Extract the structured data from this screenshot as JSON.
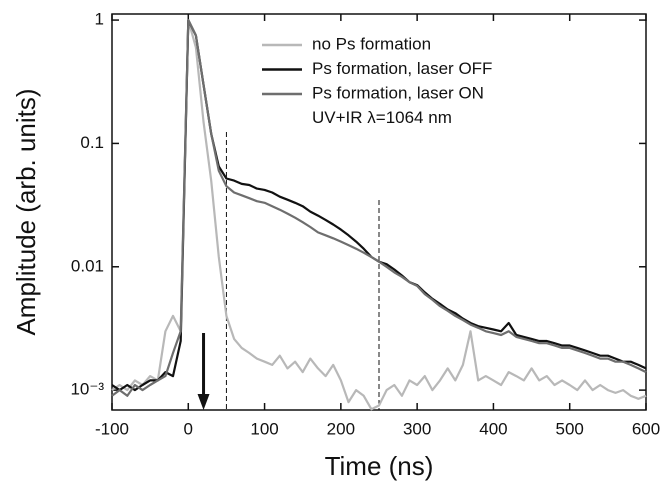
{
  "chart_data": {
    "type": "line",
    "x_label": "Time (ns)",
    "y_label": "Amplitude (arb. units)",
    "log_y": true,
    "xlim": [
      -100,
      600
    ],
    "ylim": [
      0.00069,
      1.12
    ],
    "xticks": [
      -100,
      0,
      100,
      200,
      300,
      400,
      500,
      600
    ],
    "yticks": [
      {
        "value": 0.001,
        "label": "10⁻³"
      },
      0.01,
      0.1,
      1
    ],
    "annotation": "UV+IR λ=1064 nm",
    "vlines": [
      50,
      250
    ],
    "arrow_x": 20,
    "x": [
      -100,
      -90,
      -80,
      -70,
      -60,
      -50,
      -40,
      -30,
      -20,
      -10,
      0,
      10,
      20,
      30,
      40,
      50,
      60,
      70,
      80,
      90,
      100,
      110,
      120,
      130,
      140,
      150,
      160,
      170,
      180,
      190,
      200,
      210,
      220,
      230,
      240,
      250,
      260,
      270,
      280,
      290,
      300,
      310,
      320,
      330,
      340,
      350,
      360,
      370,
      380,
      390,
      400,
      410,
      420,
      430,
      440,
      450,
      460,
      470,
      480,
      490,
      500,
      510,
      520,
      530,
      540,
      550,
      560,
      570,
      580,
      590,
      600
    ],
    "series": [
      {
        "name": "no Ps formation",
        "color": "#b8b8b8",
        "values": [
          0.001,
          0.0011,
          0.001,
          0.0012,
          0.0011,
          0.0013,
          0.0012,
          0.003,
          0.004,
          0.003,
          1,
          0.6,
          0.15,
          0.05,
          0.012,
          0.004,
          0.0026,
          0.0022,
          0.002,
          0.0018,
          0.0017,
          0.0016,
          0.0019,
          0.0015,
          0.0017,
          0.0014,
          0.0018,
          0.0015,
          0.0013,
          0.0016,
          0.0012,
          0.0008,
          0.001,
          0.0009,
          0.0007,
          0.00075,
          0.001,
          0.0011,
          0.0009,
          0.0012,
          0.0011,
          0.0013,
          0.001,
          0.0012,
          0.0015,
          0.0012,
          0.0016,
          0.003,
          0.0012,
          0.0013,
          0.0012,
          0.0011,
          0.0014,
          0.0013,
          0.0012,
          0.0015,
          0.0012,
          0.0013,
          0.0011,
          0.0012,
          0.0011,
          0.001,
          0.0012,
          0.001,
          0.0011,
          0.001,
          0.00095,
          0.001,
          0.0009,
          0.00085,
          0.0009
        ]
      },
      {
        "name": "Ps formation, laser OFF",
        "color": "#111111",
        "values": [
          0.0011,
          0.001,
          0.0011,
          0.001,
          0.0011,
          0.0012,
          0.0012,
          0.0014,
          0.0013,
          0.0025,
          1,
          0.75,
          0.3,
          0.12,
          0.065,
          0.052,
          0.05,
          0.047,
          0.046,
          0.043,
          0.042,
          0.04,
          0.037,
          0.035,
          0.033,
          0.031,
          0.028,
          0.026,
          0.024,
          0.022,
          0.02,
          0.018,
          0.016,
          0.014,
          0.012,
          0.011,
          0.0105,
          0.0095,
          0.0085,
          0.0075,
          0.0071,
          0.0062,
          0.0055,
          0.005,
          0.0045,
          0.0042,
          0.0038,
          0.0035,
          0.0033,
          0.0032,
          0.0031,
          0.003,
          0.0035,
          0.0028,
          0.0027,
          0.0026,
          0.0025,
          0.0025,
          0.0024,
          0.0023,
          0.0023,
          0.0022,
          0.0021,
          0.002,
          0.0019,
          0.0019,
          0.0018,
          0.0017,
          0.0017,
          0.0016,
          0.0015
        ]
      },
      {
        "name": "Ps formation, laser ON",
        "color": "#6e6e6e",
        "values": [
          0.0009,
          0.001,
          0.0009,
          0.0011,
          0.001,
          0.0011,
          0.0012,
          0.0013,
          0.002,
          0.003,
          1,
          0.75,
          0.3,
          0.12,
          0.06,
          0.045,
          0.04,
          0.038,
          0.036,
          0.034,
          0.033,
          0.031,
          0.029,
          0.027,
          0.025,
          0.023,
          0.021,
          0.019,
          0.018,
          0.017,
          0.016,
          0.015,
          0.014,
          0.013,
          0.012,
          0.011,
          0.01,
          0.009,
          0.0083,
          0.0075,
          0.007,
          0.006,
          0.0054,
          0.0048,
          0.0044,
          0.004,
          0.0037,
          0.0034,
          0.0032,
          0.003,
          0.0029,
          0.0028,
          0.003,
          0.0027,
          0.0026,
          0.0025,
          0.0024,
          0.0024,
          0.0023,
          0.0022,
          0.0022,
          0.0021,
          0.002,
          0.0019,
          0.0018,
          0.0018,
          0.0017,
          0.0017,
          0.0016,
          0.0015,
          0.0014
        ]
      }
    ]
  }
}
